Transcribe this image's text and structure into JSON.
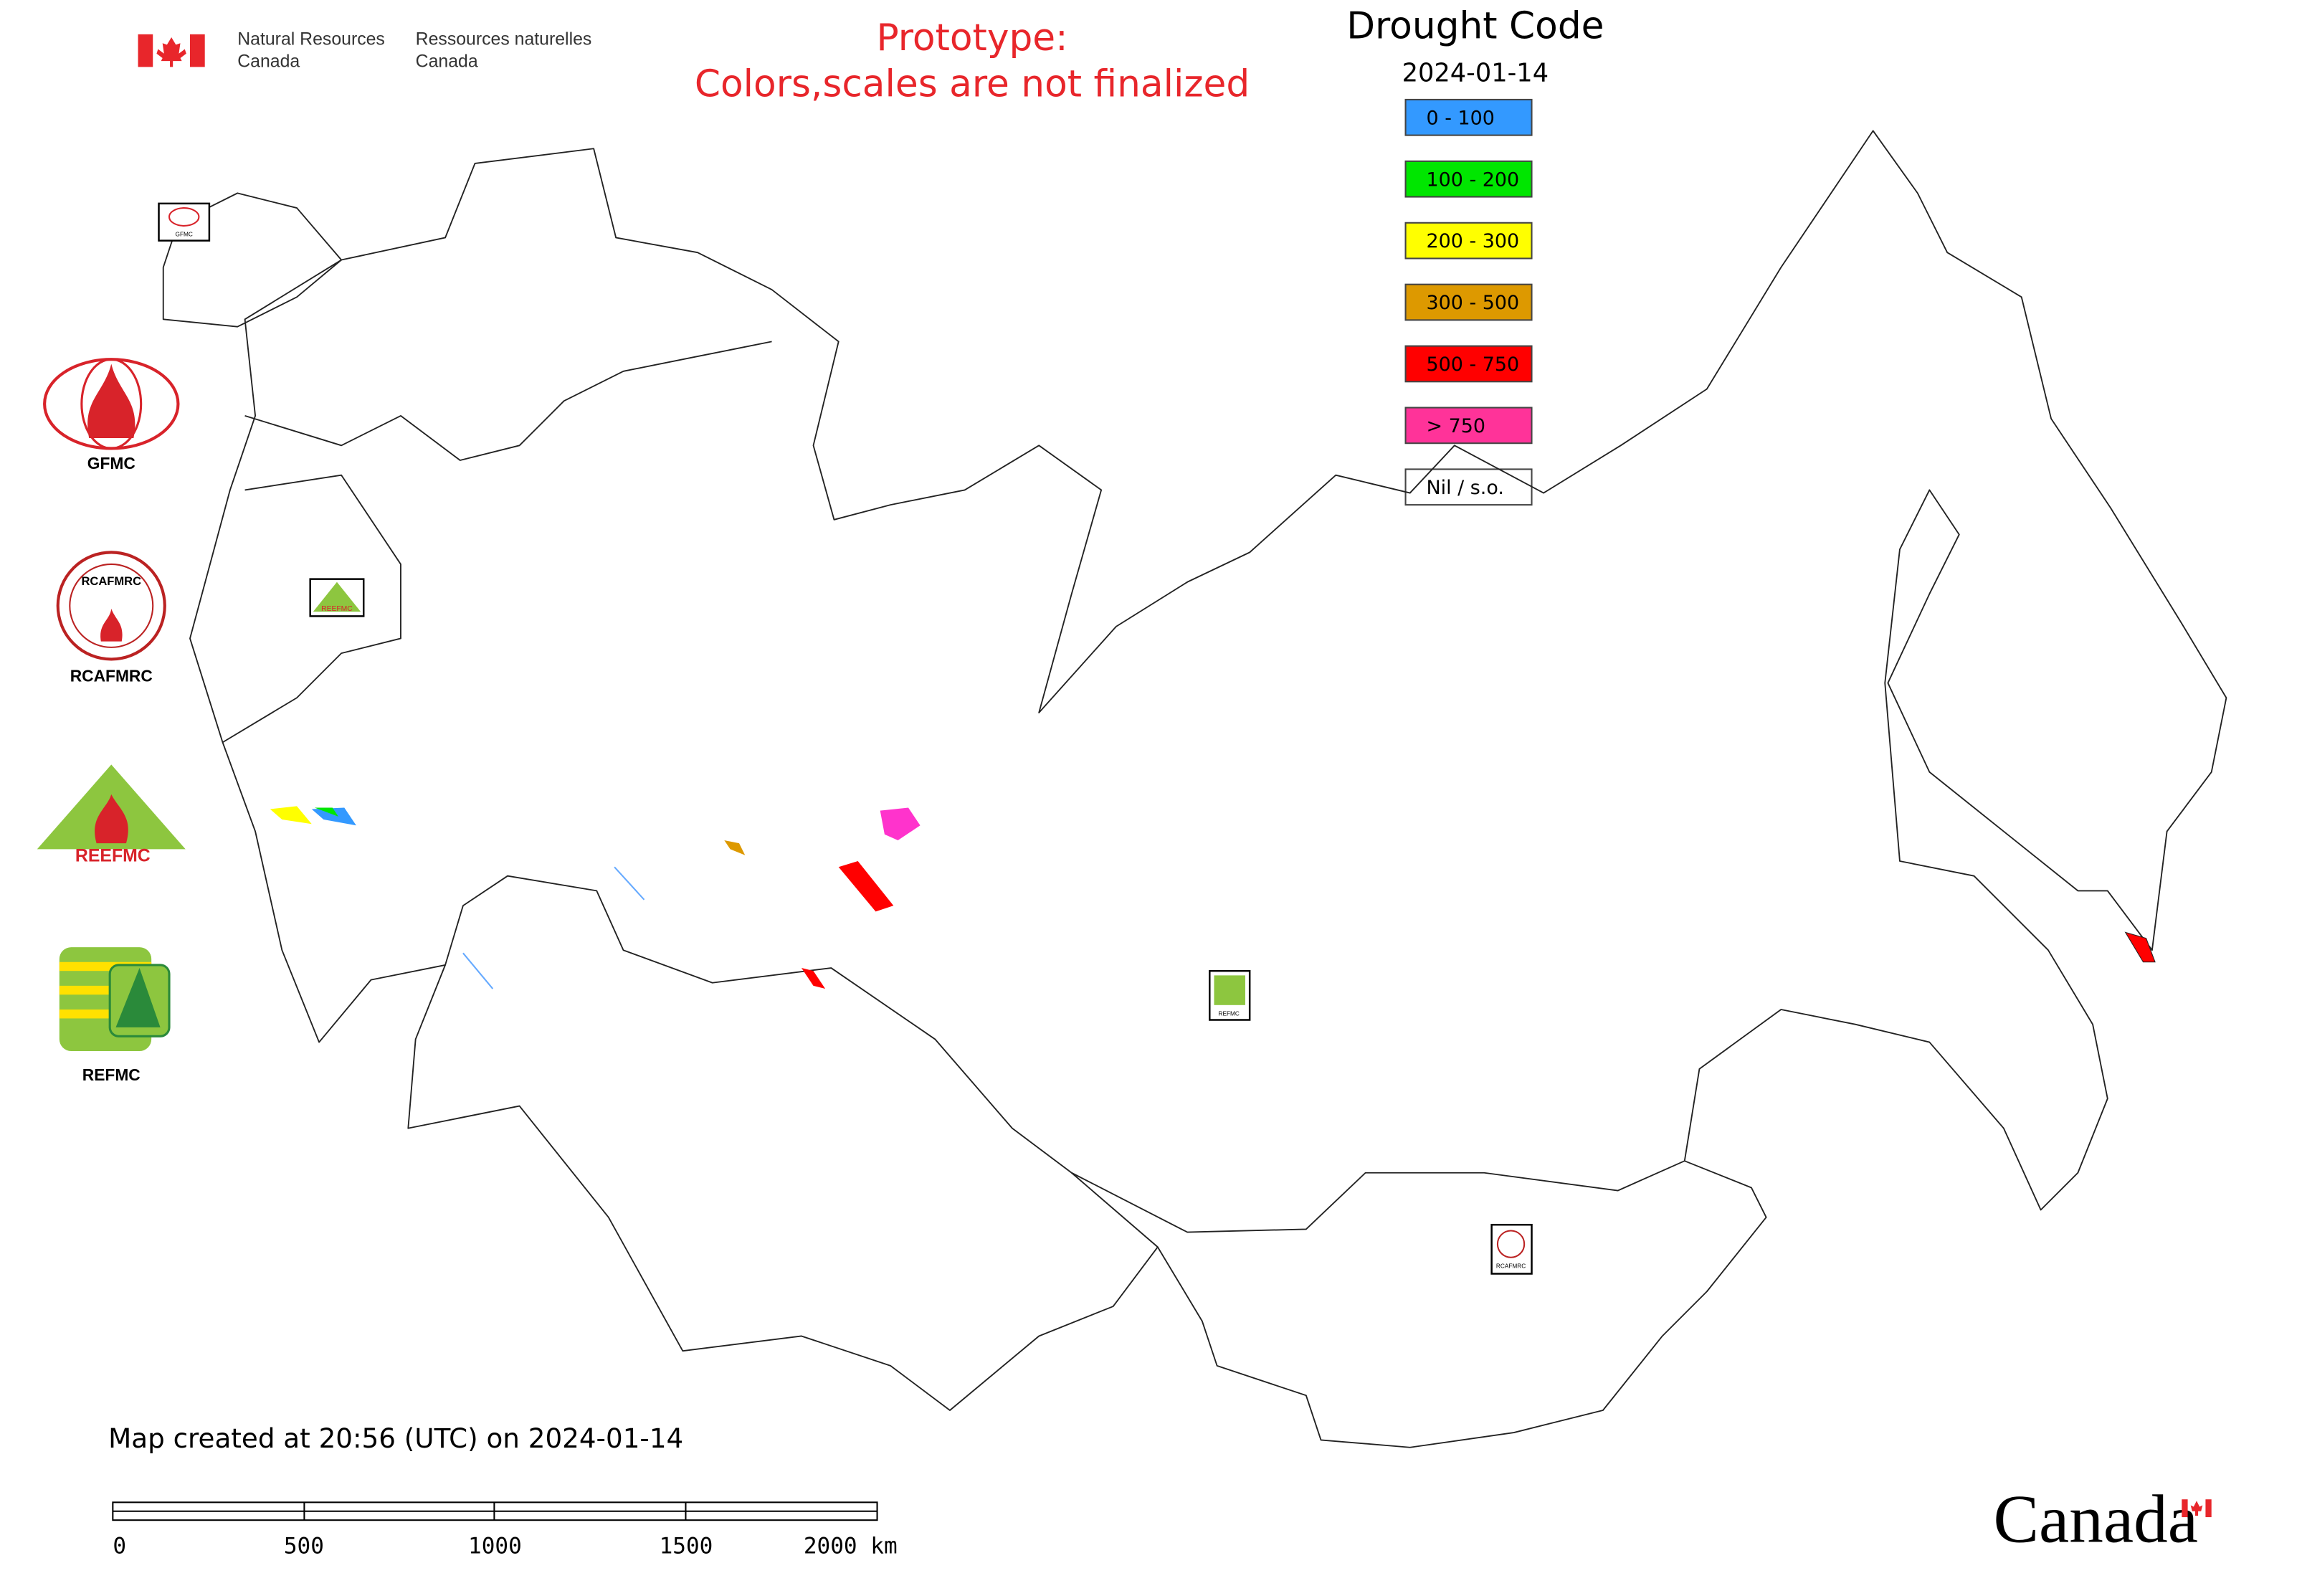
{
  "header": {
    "org_en": [
      "Natural Resources",
      "Canada"
    ],
    "org_fr": [
      "Ressources naturelles",
      "Canada"
    ]
  },
  "notice": [
    "Prototype:",
    "Colors,scales are not finalized"
  ],
  "legend": {
    "title": "Drought Code",
    "date": "2024-01-14",
    "items": [
      {
        "label": "0 - 100",
        "color": "#3399ff"
      },
      {
        "label": "100 - 200",
        "color": "#00e600"
      },
      {
        "label": "200 - 300",
        "color": "#ffff00"
      },
      {
        "label": "300 - 500",
        "color": "#dd9900"
      },
      {
        "label": "500 - 750",
        "color": "#ff0000"
      },
      {
        "label": "> 750",
        "color": "#ff3399"
      },
      {
        "label": "Nil / s.o.",
        "color": "#ffffff"
      }
    ]
  },
  "logos": [
    "GFMC",
    "RCAFMRC",
    "REEFMC",
    "REFMC"
  ],
  "footer": {
    "created": "Map created at 20:56 (UTC) on 2024-01-14",
    "scale": [
      "0",
      "500",
      "1000",
      "1500",
      "2000 km"
    ]
  },
  "wordmark": "Canada"
}
